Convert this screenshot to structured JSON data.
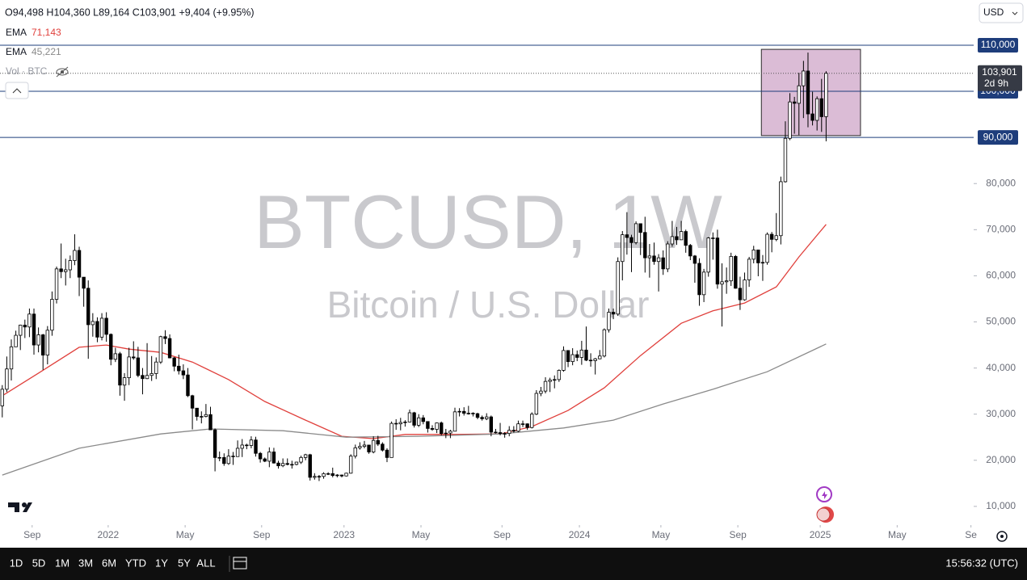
{
  "chart_data": {
    "type": "candlestick",
    "title": "BTCUSD, 1W",
    "subtitle": "Bitcoin / U.S. Dollar",
    "open": [
      31800,
      35400,
      39800,
      44600,
      47100,
      49300,
      48900,
      51700,
      45000,
      47200,
      42800,
      48200,
      54900,
      61500,
      60900,
      61300,
      63300,
      65500,
      59700,
      57300,
      49400,
      50100,
      46700,
      50800,
      47300,
      41900,
      43100,
      36300,
      37900,
      42400,
      42200,
      38400,
      37700,
      38400,
      38800,
      41300,
      46800,
      46400,
      42200,
      40400,
      39400,
      38500,
      34000,
      31300,
      29500,
      29500,
      29900,
      26600,
      20600,
      20600,
      19300,
      20900,
      20800,
      22600,
      23300,
      23200,
      24400,
      21500,
      20300,
      19800,
      21800,
      19400,
      18800,
      19300,
      19100,
      19100,
      19600,
      20600,
      21200,
      16300,
      16500,
      16500,
      17100,
      17100,
      16700,
      16800,
      16600,
      17200,
      20900,
      22700,
      23000,
      23300,
      21800,
      24300,
      23500,
      22200,
      20600,
      28000,
      27900,
      28200,
      28300,
      30300,
      27600,
      29200,
      28400,
      26900,
      26700,
      28100,
      25800,
      25900,
      26300,
      30500,
      30600,
      30200,
      30200,
      30100,
      29300,
      29000,
      29400,
      26100,
      26000,
      25800,
      25800,
      26500,
      26300,
      27900,
      27900,
      27100,
      30000,
      34500,
      35000,
      37100,
      37400,
      37500,
      39500,
      43800,
      41400,
      42900,
      42300,
      43900,
      41700,
      41600,
      42000,
      42600,
      48300,
      52100,
      51700,
      63100,
      68900,
      68300,
      67200,
      71300,
      69400,
      63900,
      64300,
      63100,
      63900,
      61500,
      66900,
      68500,
      67800,
      69600,
      66600,
      64300,
      62700,
      55900,
      60800,
      68200,
      68200,
      58200,
      58700,
      58900,
      64200,
      57300,
      54800,
      59100,
      63600,
      65600,
      62800,
      62900,
      69000,
      67900,
      68700,
      80400,
      89800,
      97700,
      97400,
      101200,
      104400,
      95100,
      93700,
      98400,
      94498
    ],
    "high": [
      36300,
      42500,
      46200,
      48100,
      49400,
      50500,
      52900,
      52900,
      48800,
      47400,
      49100,
      56600,
      62000,
      67000,
      63700,
      64400,
      69000,
      66300,
      59300,
      59000,
      51900,
      51000,
      51900,
      52100,
      47500,
      44400,
      43500,
      38900,
      44400,
      45800,
      44600,
      40000,
      45400,
      42600,
      42300,
      47000,
      48200,
      47300,
      42400,
      42900,
      40800,
      40000,
      34200,
      31300,
      30600,
      32200,
      31600,
      26900,
      21900,
      21500,
      22400,
      21800,
      24300,
      24600,
      23600,
      25200,
      25100,
      21800,
      20600,
      22800,
      22700,
      19900,
      20400,
      20400,
      19900,
      19700,
      21000,
      21400,
      21400,
      17200,
      16800,
      17400,
      17400,
      18400,
      17000,
      16900,
      17300,
      21300,
      23400,
      23900,
      24200,
      23300,
      25200,
      25300,
      23900,
      22600,
      28400,
      28900,
      29200,
      28700,
      31000,
      30500,
      30000,
      29800,
      28400,
      27600,
      28200,
      28400,
      26800,
      26600,
      31400,
      31300,
      31500,
      31800,
      30400,
      30300,
      29700,
      30200,
      29700,
      26800,
      28100,
      26100,
      27400,
      27400,
      28600,
      28600,
      28000,
      30400,
      35200,
      35900,
      38000,
      37900,
      38400,
      39700,
      44700,
      43800,
      44300,
      43800,
      45900,
      49000,
      43200,
      42200,
      43900,
      48600,
      52900,
      52900,
      64000,
      69700,
      73800,
      68900,
      71800,
      71300,
      72800,
      66900,
      67200,
      64700,
      65500,
      67500,
      71900,
      70600,
      71900,
      70000,
      66900,
      64500,
      63800,
      61500,
      68400,
      69400,
      70000,
      62700,
      61800,
      65000,
      64500,
      59800,
      60700,
      64100,
      66500,
      65600,
      64500,
      69400,
      69500,
      73600,
      81500,
      93500,
      99600,
      98800,
      104000,
      106600,
      108400,
      99900,
      98900,
      102700,
      104360
    ],
    "low": [
      29300,
      34800,
      37300,
      44600,
      43900,
      46500,
      46700,
      42900,
      43400,
      39600,
      40800,
      47000,
      54000,
      59500,
      57900,
      59500,
      62300,
      55600,
      53300,
      42000,
      46800,
      45600,
      46000,
      45700,
      40600,
      41300,
      34000,
      32900,
      36300,
      41800,
      38000,
      34300,
      37600,
      37200,
      37600,
      40900,
      45200,
      42100,
      39300,
      38600,
      37600,
      33700,
      26700,
      28600,
      28000,
      29300,
      26600,
      17600,
      19800,
      18800,
      19000,
      19000,
      20800,
      20700,
      22400,
      22600,
      20800,
      19500,
      19600,
      18500,
      19300,
      18200,
      18500,
      18900,
      18200,
      18900,
      19200,
      20000,
      15600,
      15800,
      15500,
      16000,
      16800,
      16300,
      16300,
      16300,
      16500,
      17100,
      20400,
      22300,
      22600,
      21400,
      21500,
      23100,
      21900,
      19600,
      20600,
      26600,
      26500,
      27300,
      28200,
      27100,
      27200,
      27800,
      26000,
      26400,
      25900,
      25400,
      24800,
      24800,
      26300,
      29500,
      29700,
      29900,
      29500,
      28900,
      28600,
      28700,
      25200,
      25800,
      25400,
      24900,
      25200,
      26000,
      26100,
      27200,
      26600,
      26900,
      29800,
      33900,
      34500,
      34800,
      35600,
      37000,
      39200,
      40200,
      40600,
      41500,
      40700,
      41500,
      40300,
      38600,
      41900,
      42300,
      47700,
      50600,
      51300,
      59000,
      64600,
      60800,
      66800,
      64500,
      60700,
      59600,
      62400,
      56600,
      60200,
      60800,
      66300,
      66700,
      68600,
      65000,
      63400,
      58500,
      53500,
      54300,
      59800,
      63500,
      57200,
      49000,
      56100,
      57800,
      57200,
      52600,
      54600,
      57600,
      62700,
      59900,
      58900,
      62400,
      65100,
      67500,
      66800,
      80200,
      89400,
      90800,
      90500,
      94200,
      92200,
      92600,
      91500,
      91200,
      89164
    ],
    "close": [
      35400,
      39800,
      44600,
      47100,
      49300,
      48900,
      51700,
      45000,
      47200,
      42800,
      48200,
      54900,
      61500,
      60900,
      61300,
      63300,
      65500,
      59700,
      57300,
      49400,
      50100,
      46700,
      50800,
      47300,
      41900,
      43100,
      36300,
      37900,
      42400,
      42200,
      38400,
      37700,
      38400,
      38800,
      41300,
      46800,
      46400,
      42200,
      40400,
      39400,
      38500,
      34000,
      31300,
      29500,
      29500,
      29900,
      26600,
      20600,
      20600,
      19300,
      20900,
      20800,
      22600,
      23300,
      23200,
      24400,
      21500,
      20300,
      19800,
      21800,
      19400,
      18800,
      19300,
      19100,
      19100,
      19600,
      20600,
      21200,
      16300,
      16500,
      16500,
      17100,
      17100,
      16700,
      16800,
      16600,
      17200,
      20900,
      22700,
      23000,
      23300,
      21800,
      24300,
      23500,
      22200,
      20600,
      28000,
      27900,
      28200,
      28300,
      30300,
      27600,
      29200,
      28400,
      26900,
      26700,
      28100,
      25800,
      25900,
      26300,
      30500,
      30600,
      30200,
      30200,
      30100,
      29300,
      29000,
      29400,
      26100,
      26000,
      25800,
      25800,
      26500,
      26300,
      27900,
      27900,
      27100,
      30000,
      34500,
      35000,
      37100,
      37400,
      37500,
      39500,
      43800,
      41400,
      42900,
      42300,
      43900,
      41700,
      41600,
      42000,
      42600,
      48300,
      52100,
      51700,
      63100,
      68900,
      68300,
      67200,
      71300,
      69400,
      63900,
      64300,
      63100,
      63900,
      61500,
      66900,
      68500,
      67800,
      69600,
      66600,
      64300,
      62700,
      55900,
      60800,
      68200,
      68200,
      58200,
      58700,
      58900,
      64200,
      57300,
      54800,
      59100,
      63600,
      65600,
      62800,
      62900,
      69000,
      67900,
      68700,
      80400,
      89800,
      97700,
      97400,
      101200,
      104400,
      95100,
      93700,
      98400,
      94500,
      103901
    ],
    "up_color": "#ffffff",
    "down_color": "#000000",
    "series": [
      {
        "name": "EMA",
        "value_label": "71,143",
        "color": "#e0403c",
        "x": [
          0,
          8,
          17,
          23,
          28,
          35,
          42,
          50,
          58,
          67,
          75,
          82,
          89,
          100,
          110,
          117,
          125,
          133,
          141,
          150,
          157,
          164,
          171,
          176,
          182
        ],
        "values": [
          34000,
          38900,
          44500,
          45000,
          44100,
          43400,
          41300,
          37500,
          32750,
          28700,
          25200,
          24700,
          25600,
          25600,
          25700,
          27300,
          30800,
          35700,
          42700,
          49700,
          52400,
          54100,
          57600,
          64100,
          71143
        ]
      },
      {
        "name": "EMA",
        "value_label": "45,221",
        "color": "#8a8a8a",
        "x": [
          0,
          17,
          35,
          46,
          62,
          76,
          92,
          110,
          124,
          135,
          146,
          157,
          169,
          182
        ],
        "values": [
          16800,
          22600,
          25700,
          26800,
          26400,
          25000,
          25200,
          25700,
          27000,
          28700,
          32200,
          35400,
          39200,
          45221
        ]
      }
    ],
    "xlim": [
      -0.5,
      214.6
    ],
    "xticks": [
      {
        "value": 6.6,
        "label": "Sep"
      },
      {
        "value": 23.4,
        "label": "2022"
      },
      {
        "value": 40.4,
        "label": "May"
      },
      {
        "value": 57.3,
        "label": "Sep"
      },
      {
        "value": 75.5,
        "label": "2023"
      },
      {
        "value": 92.5,
        "label": "May"
      },
      {
        "value": 110.4,
        "label": "Sep"
      },
      {
        "value": 127.5,
        "label": "2024"
      },
      {
        "value": 145.5,
        "label": "May"
      },
      {
        "value": 162.5,
        "label": "Sep"
      },
      {
        "value": 180.7,
        "label": "2025"
      },
      {
        "value": 197.7,
        "label": "May"
      },
      {
        "value": 214,
        "label": "Se"
      }
    ],
    "ylim": [
      5950,
      119800
    ],
    "yticks": [
      {
        "value": 10000,
        "label": "10,000"
      },
      {
        "value": 20000,
        "label": "20,000"
      },
      {
        "value": 30000,
        "label": "30,000"
      },
      {
        "value": 40000,
        "label": "40,000"
      },
      {
        "value": 50000,
        "label": "50,000"
      },
      {
        "value": 60000,
        "label": "60,000"
      },
      {
        "value": 70000,
        "label": "70,000"
      },
      {
        "value": 80000,
        "label": "80,000"
      }
    ],
    "hlines": [
      {
        "value": 110000,
        "label": "110,000"
      },
      {
        "value": 100000,
        "label": "100,000"
      },
      {
        "value": 90000,
        "label": "90,000"
      }
    ],
    "hline_color": "#1e3d7b",
    "last_price": {
      "value": 103901,
      "label": "103,901",
      "countdown": "2d 9h"
    },
    "box": {
      "x": [
        167.7,
        189.6
      ],
      "y": [
        90400,
        109100
      ],
      "color": "#dbbcd6"
    }
  },
  "header": {
    "ohlc": "O94,498  H104,360  L89,164  C103,901  +9,404 (+9.95%)",
    "volume": "Vol · BTC",
    "currency": "USD"
  },
  "toolbar": {
    "ranges": [
      "1D",
      "5D",
      "1M",
      "3M",
      "6M",
      "YTD",
      "1Y",
      "5Y",
      "ALL"
    ],
    "clock": "15:56:32 (UTC)"
  }
}
